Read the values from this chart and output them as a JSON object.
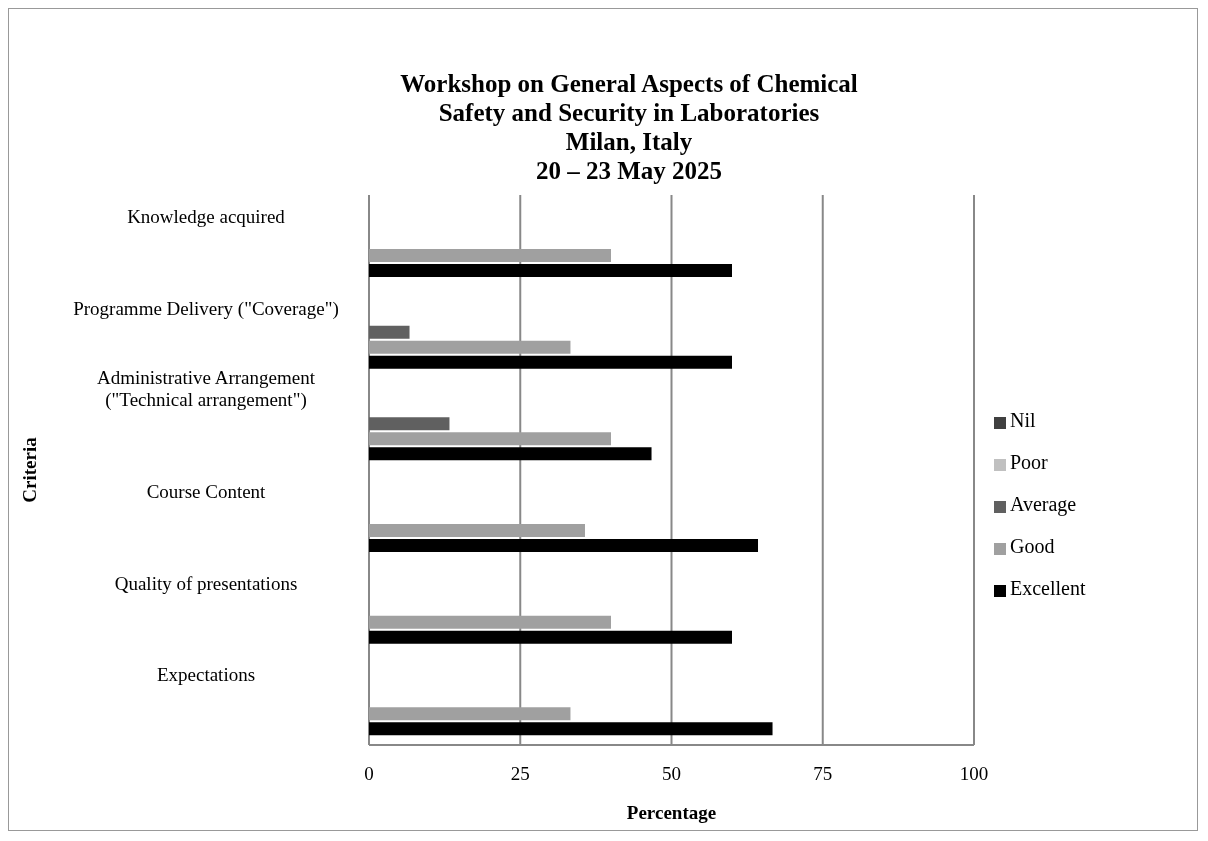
{
  "chart_data": {
    "type": "bar",
    "orientation": "horizontal",
    "title": "Workshop on General Aspects of Chemical\nSafety and Security in Laboratories\nMilan, Italy\n20 – 23 May 2025",
    "xlabel": "Percentage",
    "ylabel": "Criteria",
    "categories": [
      "Knowledge acquired",
      "Programme Delivery (\"Coverage\")",
      "Administrative Arrangement (\"Technical arrangement\")",
      "Course Content",
      "Quality of presentations",
      "Expectations"
    ],
    "series": [
      {
        "name": "Nil",
        "color": "#404040",
        "values": [
          0,
          0,
          0,
          0,
          0,
          0
        ]
      },
      {
        "name": "Poor",
        "color": "#c0c0c0",
        "values": [
          0,
          0,
          0,
          0,
          0,
          0
        ]
      },
      {
        "name": "Average",
        "color": "#606060",
        "values": [
          0,
          6.7,
          13.3,
          0,
          0,
          0
        ]
      },
      {
        "name": "Good",
        "color": "#a0a0a0",
        "values": [
          40,
          33.3,
          40,
          35.7,
          40,
          33.3
        ]
      },
      {
        "name": "Excellent",
        "color": "#000000",
        "values": [
          60,
          60,
          46.7,
          64.3,
          60,
          66.7
        ]
      }
    ],
    "xlim": [
      0,
      100
    ],
    "xticks": [
      0,
      25,
      50,
      75,
      100
    ],
    "grid": "x",
    "legend": "right"
  }
}
